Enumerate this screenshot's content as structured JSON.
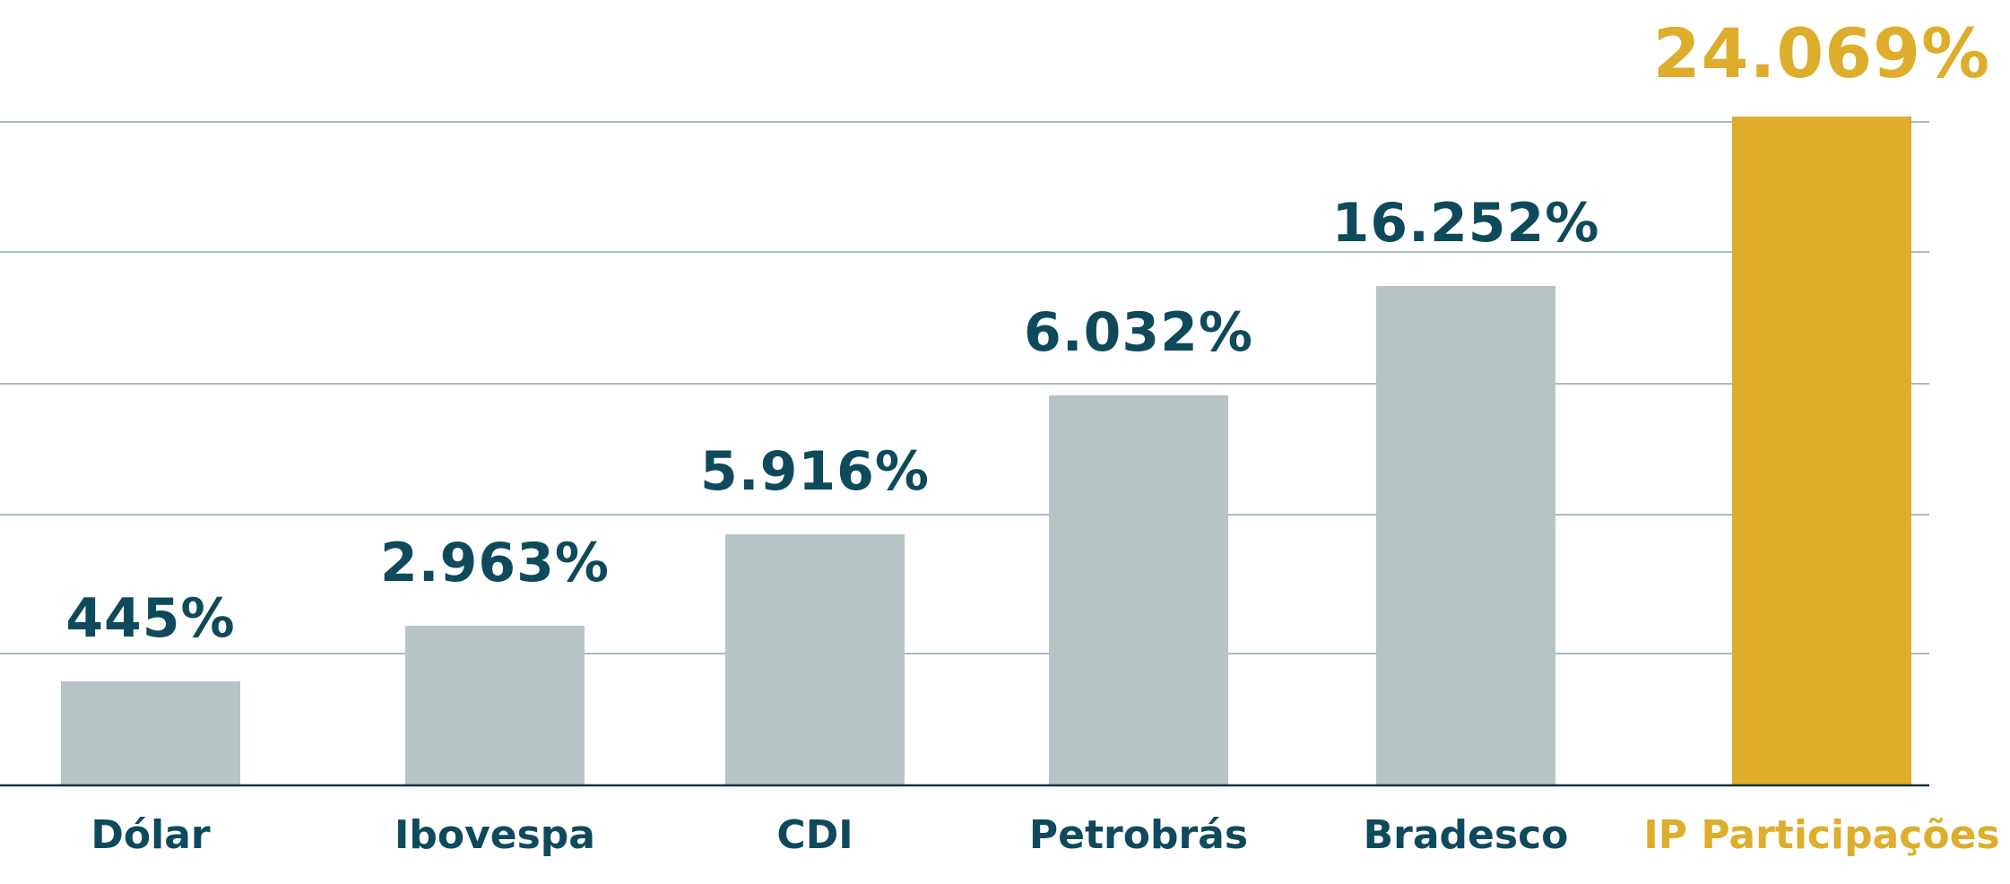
{
  "chart_data": {
    "type": "bar",
    "title": "",
    "xlabel": "",
    "ylabel": "",
    "categories": [
      "Dólar",
      "Ibovespa",
      "CDI",
      "Petrobrás",
      "Bradesco",
      "IP Participações"
    ],
    "value_labels": [
      "445%",
      "2.963%",
      "5.916%",
      "6.032%",
      "16.252%",
      "24.069%"
    ],
    "highlight_index": 5,
    "grid": true,
    "legend": "none",
    "colors": {
      "bar": "#b7c3c5",
      "highlight": "#ddad2b",
      "text": "#0e4a5c",
      "highlight_text": "#ddad2b",
      "grid": "#8aa5b2",
      "axis": "#0e3442"
    }
  }
}
